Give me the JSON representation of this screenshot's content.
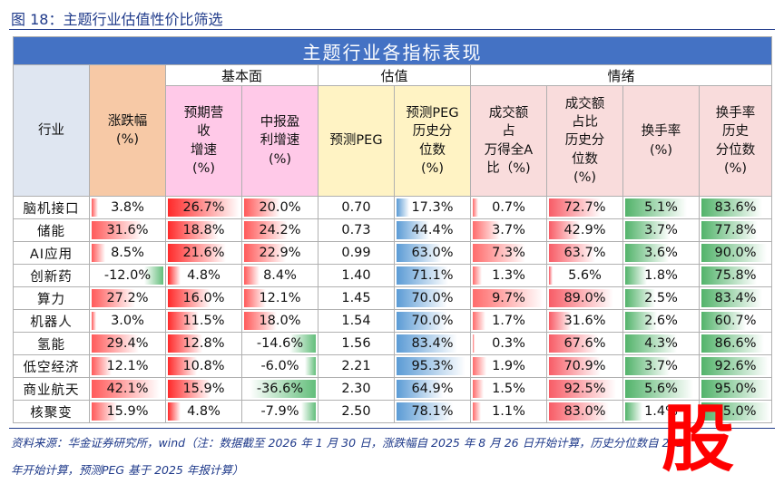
{
  "figure_title": "图 18：主题行业估值性价比筛选",
  "table": {
    "title": "主题行业各指标表现",
    "groups": {
      "fundamental": "基本面",
      "valuation": "估值",
      "sentiment": "情绪"
    },
    "headers": {
      "industry": "行业",
      "change": "涨跌幅\n(%)",
      "rev_growth": "预期营\n收\n增速\n(%)",
      "profit_growth": "中报盈\n利增速\n(%)",
      "peg": "预测PEG",
      "peg_pct": "预测PEG\n历史分\n位数\n(%)",
      "amount_share": "成交额\n占\n万得全A\n比（%)",
      "amount_pct": "成交额\n占比\n历史分\n位数\n(%)",
      "turnover": "换手率\n(%)",
      "turnover_pct": "换手率\n历史\n分位数\n(%)"
    },
    "colors": {
      "change": "#ff5a5a",
      "change_neg": "#63be7b",
      "rev_growth": "#ff2a2a",
      "profit_growth": "#ff5a5a",
      "profit_growth_neg": "#63be7b",
      "peg_pct": "#5b9bd5",
      "amount_share": "#ff6b6b",
      "amount_pct": "#f85c66",
      "turnover": "#52b36a",
      "turnover_pct": "#52b36a"
    },
    "rows": [
      {
        "industry": "脑机接口",
        "change": "3.8%",
        "rev_growth": "26.7%",
        "profit_growth": "20.0%",
        "peg": "0.70",
        "peg_pct": "17.3%",
        "amount_share": "0.7%",
        "amount_pct": "72.7%",
        "turnover": "5.1%",
        "turnover_pct": "83.6%"
      },
      {
        "industry": "储能",
        "change": "31.6%",
        "rev_growth": "18.8%",
        "profit_growth": "24.2%",
        "peg": "0.73",
        "peg_pct": "44.4%",
        "amount_share": "3.7%",
        "amount_pct": "42.9%",
        "turnover": "3.7%",
        "turnover_pct": "77.8%"
      },
      {
        "industry": "AI应用",
        "change": "8.5%",
        "rev_growth": "21.6%",
        "profit_growth": "22.9%",
        "peg": "0.99",
        "peg_pct": "63.0%",
        "amount_share": "7.3%",
        "amount_pct": "63.7%",
        "turnover": "3.6%",
        "turnover_pct": "90.0%"
      },
      {
        "industry": "创新药",
        "change": "-12.0%",
        "rev_growth": "4.8%",
        "profit_growth": "8.4%",
        "peg": "1.40",
        "peg_pct": "71.1%",
        "amount_share": "1.3%",
        "amount_pct": "5.6%",
        "turnover": "1.8%",
        "turnover_pct": "75.8%"
      },
      {
        "industry": "算力",
        "change": "27.2%",
        "rev_growth": "16.0%",
        "profit_growth": "12.1%",
        "peg": "1.45",
        "peg_pct": "70.0%",
        "amount_share": "9.7%",
        "amount_pct": "89.0%",
        "turnover": "2.5%",
        "turnover_pct": "83.4%"
      },
      {
        "industry": "机器人",
        "change": "3.0%",
        "rev_growth": "11.5%",
        "profit_growth": "18.0%",
        "peg": "1.54",
        "peg_pct": "70.0%",
        "amount_share": "1.7%",
        "amount_pct": "31.6%",
        "turnover": "2.6%",
        "turnover_pct": "60.7%"
      },
      {
        "industry": "氢能",
        "change": "29.4%",
        "rev_growth": "12.8%",
        "profit_growth": "-14.6%",
        "peg": "1.56",
        "peg_pct": "83.4%",
        "amount_share": "0.3%",
        "amount_pct": "67.6%",
        "turnover": "4.3%",
        "turnover_pct": "86.6%"
      },
      {
        "industry": "低空经济",
        "change": "12.1%",
        "rev_growth": "10.8%",
        "profit_growth": "-6.0%",
        "peg": "2.21",
        "peg_pct": "95.3%",
        "amount_share": "1.9%",
        "amount_pct": "70.9%",
        "turnover": "3.7%",
        "turnover_pct": "92.6%"
      },
      {
        "industry": "商业航天",
        "change": "42.1%",
        "rev_growth": "15.9%",
        "profit_growth": "-36.6%",
        "peg": "2.30",
        "peg_pct": "64.9%",
        "amount_share": "1.5%",
        "amount_pct": "92.5%",
        "turnover": "5.6%",
        "turnover_pct": "95.0%"
      },
      {
        "industry": "核聚变",
        "change": "15.9%",
        "rev_growth": "4.8%",
        "profit_growth": "-7.9%",
        "peg": "2.50",
        "peg_pct": "78.1%",
        "amount_share": "1.1%",
        "amount_pct": "83.0%",
        "turnover": "1.4%",
        "turnover_pct": "95.0%"
      }
    ]
  },
  "footer": {
    "line1": "资料来源：华金证券研究所，wind（注：数据截至 2026 年 1 月 30 日，涨跌幅自 2025 年 8 月 26 日开始计算，历史分位数自 2021",
    "line2": "年开始计算，预测PEG 基于 2025 年报计算）"
  },
  "watermark": {
    "glyph": "股",
    "color": "#ff0000"
  }
}
